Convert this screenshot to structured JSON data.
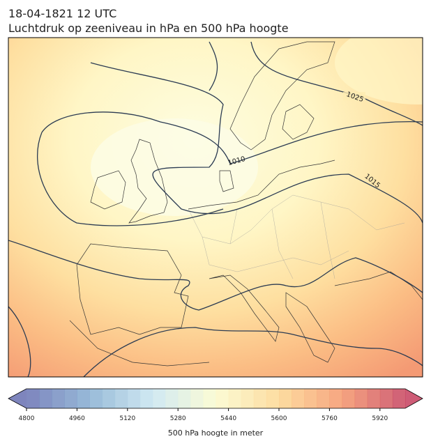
{
  "title": "18-04-1821 12 UTC",
  "subtitle": "Luchtdruk op zeeniveau in hPa en 500 hPa hoogte",
  "map": {
    "isobar_labels": [
      1025,
      1015,
      1010
    ]
  },
  "colorbar": {
    "label": "500 hPa hoogte in meter",
    "lim": [
      4800,
      6000
    ],
    "ticks": [
      4800,
      4960,
      5120,
      5280,
      5440,
      5600,
      5760,
      5920
    ],
    "colors": [
      "#6770b2",
      "#86aed2",
      "#c9e6f0",
      "#fbfbcd",
      "#fdd690",
      "#f5966a",
      "#c5405e"
    ]
  }
}
